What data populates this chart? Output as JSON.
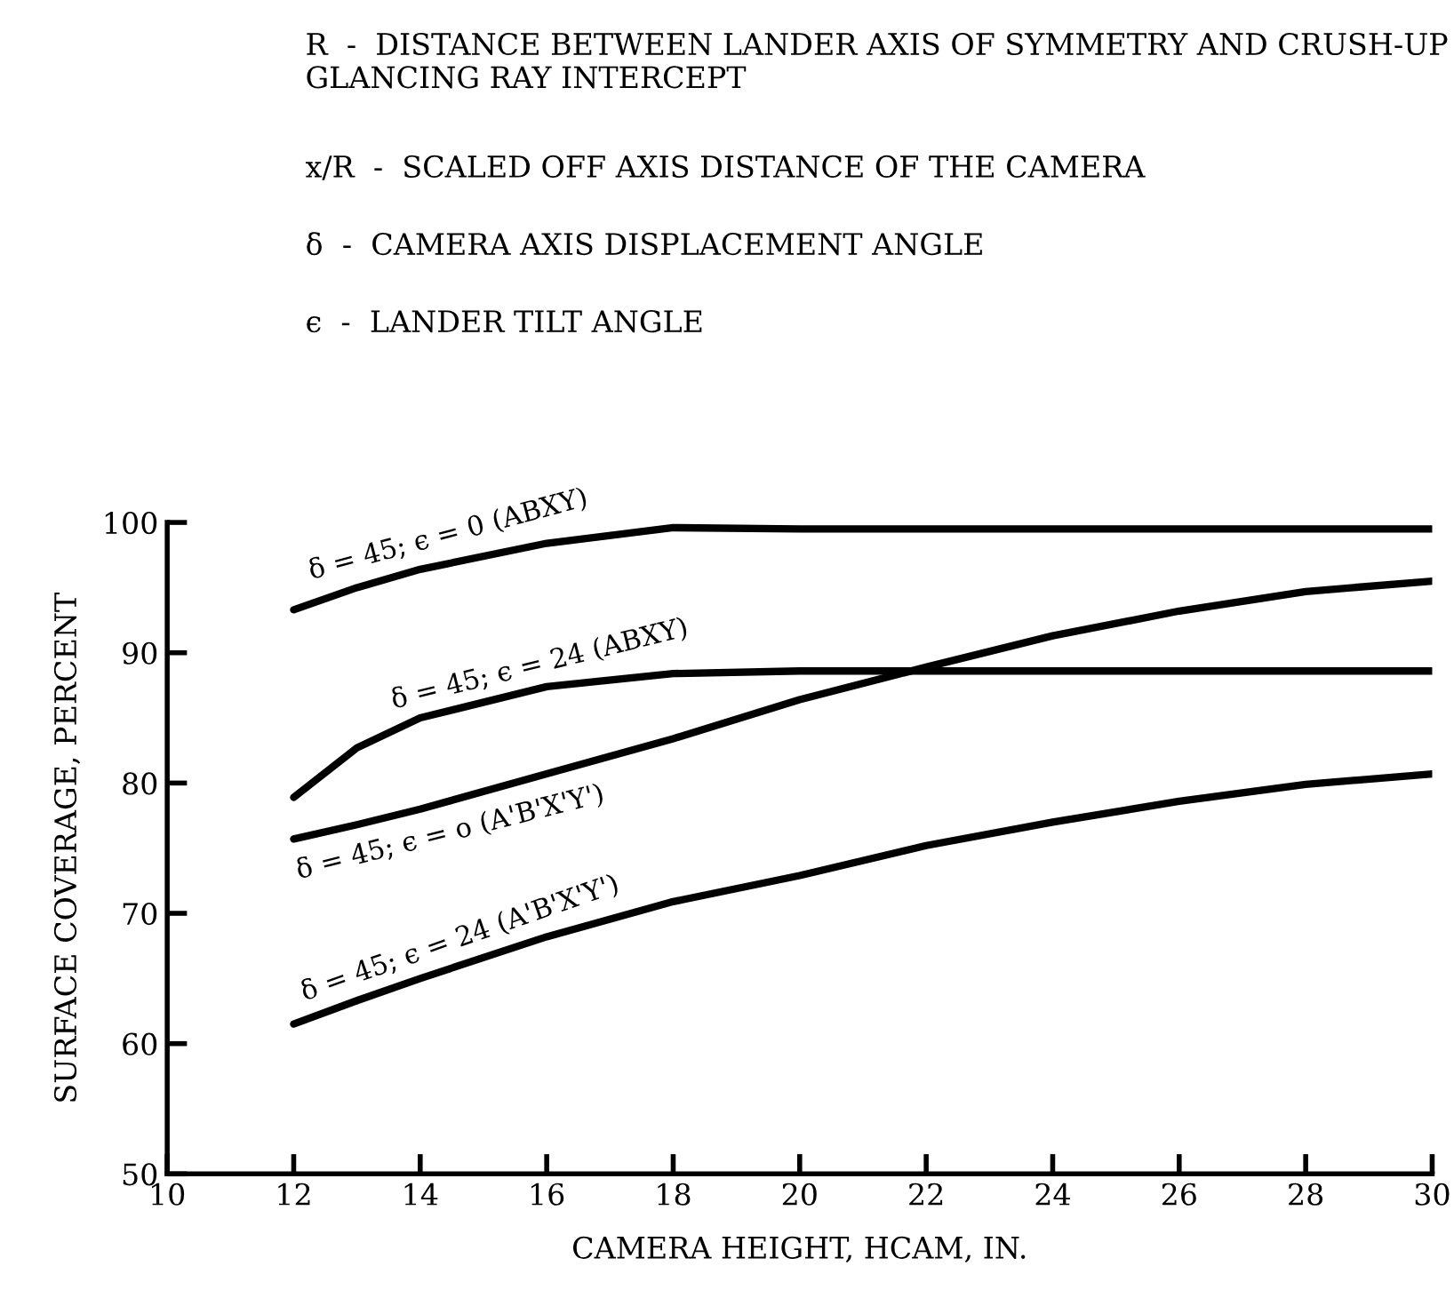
{
  "chart_data": {
    "type": "line",
    "xlabel": "CAMERA HEIGHT, HCAM, IN.",
    "ylabel": "SURFACE COVERAGE, PERCENT",
    "annotations": [
      "R  -  DISTANCE BETWEEN LANDER AXIS OF SYMMETRY AND CRUSH-UP GLANCING RAY INTERCEPT",
      "x/R  -  SCALED OFF AXIS DISTANCE OF THE CAMERA",
      "δ  -  CAMERA AXIS DISPLACEMENT ANGLE",
      "ϵ  -  LANDER TILT ANGLE"
    ],
    "x": [
      12,
      13,
      14,
      16,
      18,
      20,
      22,
      24,
      26,
      28,
      30
    ],
    "series": [
      {
        "name": "δ = 45; ϵ = 0 (ABXY)",
        "color": "#000000",
        "values": [
          93.3,
          95.0,
          96.4,
          98.4,
          99.6,
          99.5,
          99.5,
          99.5,
          99.5,
          99.5,
          99.5
        ]
      },
      {
        "name": "δ = 45; ϵ = 24 (ABXY)",
        "color": "#000000",
        "values": [
          78.9,
          82.7,
          85.0,
          87.4,
          88.4,
          88.6,
          88.6,
          88.6,
          88.6,
          88.6,
          88.6
        ]
      },
      {
        "name": "δ = 45; ϵ = o (A'B'X'Y')",
        "color": "#000000",
        "values": [
          75.7,
          76.8,
          78.0,
          80.7,
          83.4,
          86.4,
          88.9,
          91.3,
          93.2,
          94.7,
          95.5
        ]
      },
      {
        "name": "δ = 45; ϵ = 24 (A'B'X'Y')",
        "color": "#000000",
        "values": [
          61.5,
          63.3,
          65.0,
          68.2,
          70.9,
          72.9,
          75.2,
          77.0,
          78.6,
          79.9,
          80.7
        ]
      }
    ],
    "xlim": [
      10,
      30
    ],
    "ylim": [
      50,
      100
    ],
    "xticks": [
      10,
      12,
      14,
      16,
      18,
      20,
      22,
      24,
      26,
      28,
      30
    ],
    "yticks": [
      50,
      60,
      70,
      80,
      90,
      100
    ],
    "grid": false,
    "legend": false,
    "marker": "none",
    "line_style": "solid"
  }
}
